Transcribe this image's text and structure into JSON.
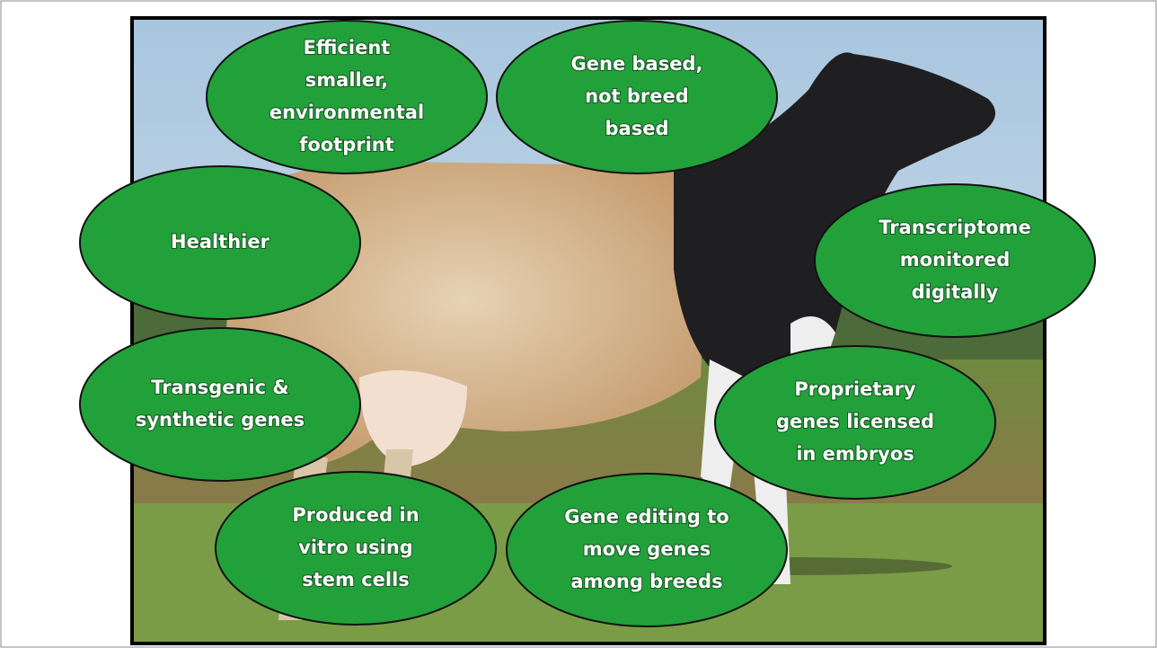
{
  "nodes": [
    {
      "lines": [
        "Efficient",
        "smaller,",
        "environmental",
        "footprint"
      ]
    },
    {
      "lines": [
        "Gene based,",
        "not breed",
        "based"
      ]
    },
    {
      "lines": [
        "Healthier"
      ]
    },
    {
      "lines": [
        "Transcriptome",
        "monitored",
        "digitally"
      ]
    },
    {
      "lines": [
        "Transgenic &",
        "synthetic genes"
      ]
    },
    {
      "lines": [
        "Proprietary",
        "genes licensed",
        "in embryos"
      ]
    },
    {
      "lines": [
        "Produced in",
        "vitro using",
        "stem cells"
      ]
    },
    {
      "lines": [
        "Gene editing to",
        "move genes",
        "among breeds"
      ]
    }
  ]
}
